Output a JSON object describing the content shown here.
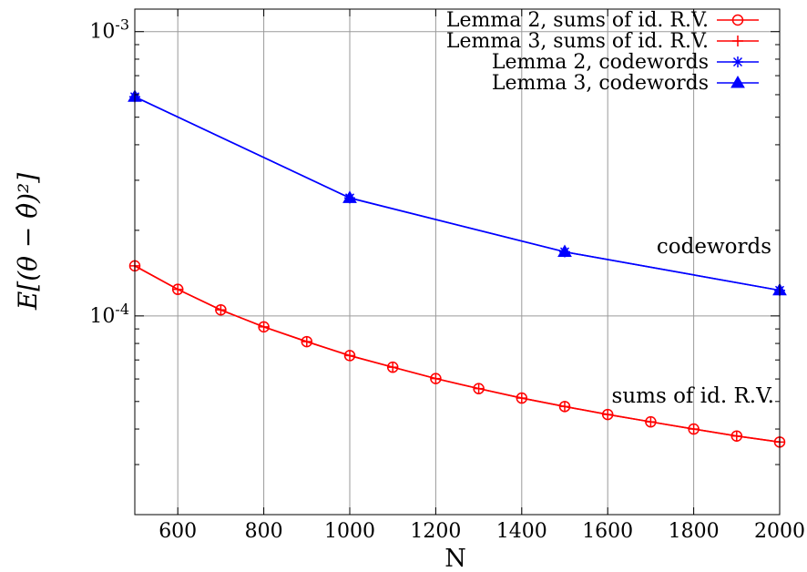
{
  "chart_data": {
    "type": "line",
    "title": "",
    "xlabel": "N",
    "ylabel": "E[(θ − θ̂)²]",
    "x_scale": "linear",
    "y_scale": "log",
    "xlim": [
      500,
      2000
    ],
    "ylim": [
      2e-05,
      0.0012
    ],
    "grid": true,
    "legend_position": "top-right",
    "x_ticks": [
      {
        "value": 600,
        "label": "600"
      },
      {
        "value": 800,
        "label": "800"
      },
      {
        "value": 1000,
        "label": "1000"
      },
      {
        "value": 1200,
        "label": "1200"
      },
      {
        "value": 1400,
        "label": "1400"
      },
      {
        "value": 1600,
        "label": "1600"
      },
      {
        "value": 1800,
        "label": "1800"
      },
      {
        "value": 2000,
        "label": "2000"
      }
    ],
    "y_ticks": [
      {
        "value": 0.001,
        "base": "10",
        "exp": "-3"
      },
      {
        "value": 0.0001,
        "base": "10",
        "exp": "-4"
      }
    ],
    "series": [
      {
        "name": "Lemma 2, sums of id. R.V.",
        "color": "#ff0000",
        "marker": "circle",
        "x": [
          500,
          600,
          700,
          800,
          900,
          1000,
          1100,
          1200,
          1300,
          1400,
          1500,
          1600,
          1700,
          1800,
          1900,
          2000
        ],
        "y": [
          0.00015,
          0.000124,
          0.000105,
          9.15e-05,
          8.12e-05,
          7.25e-05,
          6.6e-05,
          6.02e-05,
          5.55e-05,
          5.14e-05,
          4.8e-05,
          4.5e-05,
          4.24e-05,
          4e-05,
          3.78e-05,
          3.6e-05
        ]
      },
      {
        "name": "Lemma 3, sums of id. R.V.",
        "color": "#ff0000",
        "marker": "plus",
        "x": [
          500,
          600,
          700,
          800,
          900,
          1000,
          1100,
          1200,
          1300,
          1400,
          1500,
          1600,
          1700,
          1800,
          1900,
          2000
        ],
        "y": [
          0.00015,
          0.000124,
          0.000105,
          9.15e-05,
          8.12e-05,
          7.25e-05,
          6.6e-05,
          6.02e-05,
          5.55e-05,
          5.14e-05,
          4.8e-05,
          4.5e-05,
          4.24e-05,
          4e-05,
          3.78e-05,
          3.6e-05
        ]
      },
      {
        "name": "Lemma 2, codewords",
        "color": "#0000ff",
        "marker": "star",
        "x": [
          500,
          1000,
          1500,
          2000
        ],
        "y": [
          0.00059,
          0.00026,
          0.000168,
          0.000123
        ]
      },
      {
        "name": "Lemma 3, codewords",
        "color": "#0000ff",
        "marker": "triangle",
        "x": [
          500,
          1000,
          1500,
          2000
        ],
        "y": [
          0.00059,
          0.00026,
          0.000168,
          0.000123
        ]
      }
    ],
    "annotations": [
      {
        "text": "codewords"
      },
      {
        "text": "sums of id. R.V."
      }
    ]
  }
}
